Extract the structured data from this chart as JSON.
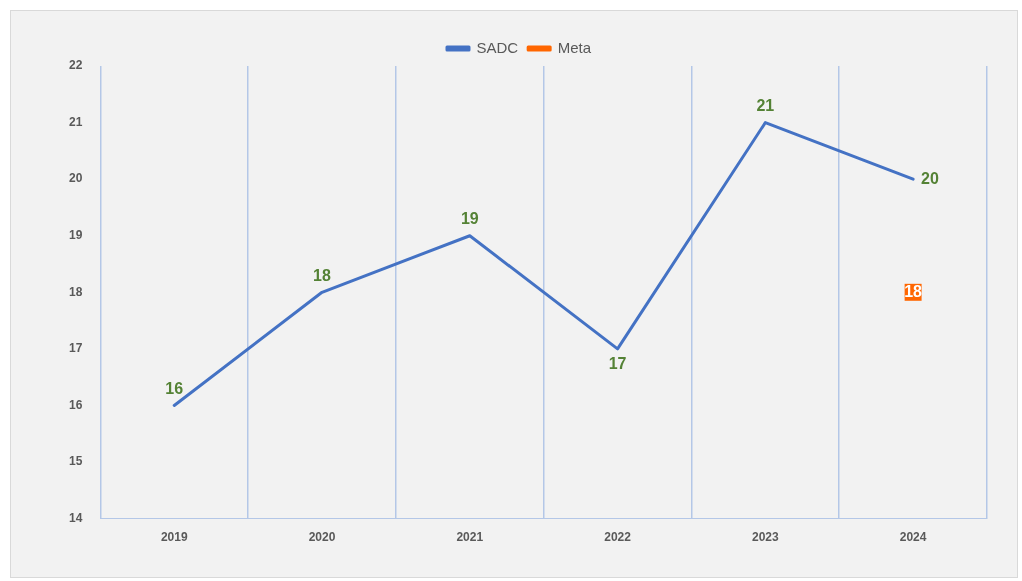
{
  "chart_data": {
    "type": "line",
    "categories": [
      "2019",
      "2020",
      "2021",
      "2022",
      "2023",
      "2024"
    ],
    "series": [
      {
        "name": "SADC",
        "color": "#4472c4",
        "values": [
          16,
          18,
          19,
          17,
          21,
          20
        ]
      },
      {
        "name": "Meta",
        "color": "#ff6600",
        "marker": "square",
        "values": [
          null,
          null,
          null,
          null,
          null,
          18
        ]
      }
    ],
    "ylim": [
      14,
      22
    ],
    "yticks": [
      14,
      15,
      16,
      17,
      18,
      19,
      20,
      21,
      22
    ],
    "grid": "x",
    "legend": "top",
    "marker": "none",
    "line_style": "solid",
    "data_labels": true
  }
}
